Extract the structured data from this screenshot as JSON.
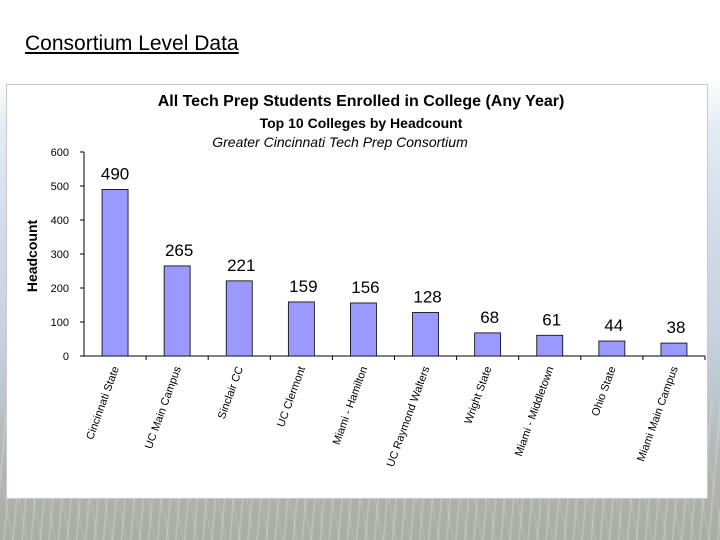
{
  "slide": {
    "title": "Consortium Level Data"
  },
  "chart_data": {
    "type": "bar",
    "title": "All Tech Prep Students Enrolled in College (Any Year)",
    "subtitle": "Top 10 Colleges by Headcount",
    "subtitle2": "Greater Cincinnati Tech Prep Consortium",
    "ylabel": "Headcount",
    "xlabel": "",
    "ylim": [
      0,
      600
    ],
    "yticks": [
      0,
      100,
      200,
      300,
      400,
      500,
      600
    ],
    "categories": [
      "Cincinnati State",
      "UC Main Campus",
      "Sinclair CC",
      "UC Clermont",
      "Miami - Hamilton",
      "UC Raymond Walters",
      "Wright State",
      "Miami - Middletown",
      "Ohio State",
      "Miami Main Campus"
    ],
    "values": [
      490,
      265,
      221,
      159,
      156,
      128,
      68,
      61,
      44,
      38
    ],
    "grid": false,
    "legend": "none",
    "bar_color": "#9999ff",
    "bar_border": "#000000"
  }
}
